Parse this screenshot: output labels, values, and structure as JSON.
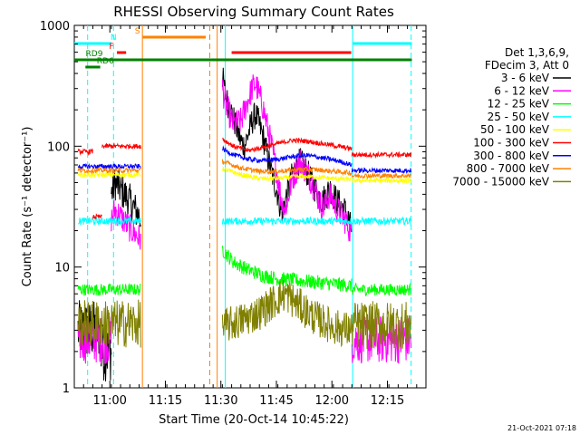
{
  "chart_data": {
    "type": "line",
    "title": "RHESSI Observing Summary Count Rates",
    "xlabel": "Start Time (20-Oct-14 10:45:22)",
    "ylabel": "Count Rate (s⁻¹ detector⁻¹)",
    "yscale": "log",
    "ylim": [
      1,
      1000
    ],
    "xlim_minutes": [
      5,
      100
    ],
    "x_ticks": [
      {
        "m": 14.6,
        "label": "11:00"
      },
      {
        "m": 29.6,
        "label": "11:15"
      },
      {
        "m": 44.6,
        "label": "11:30"
      },
      {
        "m": 59.6,
        "label": "11:45"
      },
      {
        "m": 74.6,
        "label": "12:00"
      },
      {
        "m": 89.6,
        "label": "12:15"
      }
    ],
    "y_ticks": [
      {
        "v": 1,
        "label": "1"
      },
      {
        "v": 10,
        "label": "10"
      },
      {
        "v": 100,
        "label": "100"
      },
      {
        "v": 1000,
        "label": "1000"
      }
    ],
    "legend_header": [
      "Det 1,3,6,9,",
      "FDecim 3, Att 0"
    ],
    "legend_position": "right",
    "series": [
      {
        "name": "3 - 6 keV",
        "color": "#000000",
        "segments": [
          {
            "from": 6,
            "to": 12,
            "level": 3.0,
            "noise": 0.25
          },
          {
            "from": 12,
            "to": 15,
            "level": 2.0,
            "noise": 0.25
          },
          {
            "from": 15,
            "to": 23,
            "points": [
              [
                15,
                40
              ],
              [
                16,
                50
              ],
              [
                18,
                42
              ],
              [
                20,
                35
              ],
              [
                22,
                28
              ],
              [
                23,
                25
              ]
            ],
            "noise": 0.15
          },
          {
            "from": 45,
            "to": 80,
            "points": [
              [
                45,
                380
              ],
              [
                46,
                250
              ],
              [
                48,
                170
              ],
              [
                50,
                110
              ],
              [
                51,
                100
              ],
              [
                53,
                160
              ],
              [
                54,
                185
              ],
              [
                56,
                120
              ],
              [
                58,
                65
              ],
              [
                60,
                40
              ],
              [
                61,
                28
              ],
              [
                63,
                45
              ],
              [
                64,
                60
              ],
              [
                66,
                75
              ],
              [
                68,
                60
              ],
              [
                70,
                45
              ],
              [
                72,
                35
              ],
              [
                74,
                45
              ],
              [
                76,
                35
              ],
              [
                78,
                30
              ],
              [
                79,
                25
              ],
              [
                80,
                20
              ]
            ],
            "noise": 0.12
          }
        ]
      },
      {
        "name": "6 - 12 keV",
        "color": "#ff00ff",
        "segments": [
          {
            "from": 6,
            "to": 15,
            "level": 2.5,
            "noise": 0.2
          },
          {
            "from": 15,
            "to": 23,
            "points": [
              [
                15,
                25
              ],
              [
                16,
                30
              ],
              [
                18,
                25
              ],
              [
                20,
                21
              ],
              [
                22,
                18
              ],
              [
                23,
                17
              ]
            ],
            "noise": 0.12
          },
          {
            "from": 45,
            "to": 80,
            "points": [
              [
                45,
                300
              ],
              [
                46,
                220
              ],
              [
                48,
                150
              ],
              [
                50,
                160
              ],
              [
                51,
                200
              ],
              [
                53,
                300
              ],
              [
                54,
                330
              ],
              [
                56,
                210
              ],
              [
                58,
                110
              ],
              [
                60,
                55
              ],
              [
                61,
                35
              ],
              [
                62,
                30
              ],
              [
                64,
                55
              ],
              [
                66,
                75
              ],
              [
                68,
                60
              ],
              [
                70,
                45
              ],
              [
                72,
                30
              ],
              [
                74,
                40
              ],
              [
                76,
                30
              ],
              [
                78,
                25
              ],
              [
                79,
                22
              ],
              [
                80,
                18
              ]
            ],
            "noise": 0.12
          },
          {
            "from": 80,
            "to": 96,
            "level": 2.5,
            "noise": 0.2
          }
        ]
      },
      {
        "name": "12 - 25 keV",
        "color": "#00ff00",
        "segments": [
          {
            "from": 6,
            "to": 23,
            "level": 6.5,
            "noise": 0.05
          },
          {
            "from": 45,
            "to": 80,
            "points": [
              [
                45,
                14
              ],
              [
                48,
                11
              ],
              [
                52,
                9.5
              ],
              [
                56,
                8.5
              ],
              [
                60,
                8
              ],
              [
                64,
                7.8
              ],
              [
                68,
                7.6
              ],
              [
                72,
                7.4
              ],
              [
                76,
                7.2
              ],
              [
                80,
                7
              ]
            ],
            "noise": 0.06
          },
          {
            "from": 80,
            "to": 96,
            "level": 6.5,
            "noise": 0.05
          }
        ]
      },
      {
        "name": "25 - 50 keV",
        "color": "#00ffff",
        "segments": [
          {
            "from": 6,
            "to": 23,
            "level": 24,
            "noise": 0.03
          },
          {
            "from": 45,
            "to": 96,
            "level": 24,
            "noise": 0.03
          }
        ]
      },
      {
        "name": "50 - 100 keV",
        "color": "#ffff00",
        "segments": [
          {
            "from": 6,
            "to": 23,
            "level": 58,
            "noise": 0.02
          },
          {
            "from": 45,
            "to": 80,
            "points": [
              [
                45,
                65
              ],
              [
                50,
                58
              ],
              [
                55,
                54
              ],
              [
                60,
                54
              ],
              [
                65,
                56
              ],
              [
                70,
                56
              ],
              [
                75,
                54
              ],
              [
                80,
                53
              ]
            ],
            "noise": 0.02
          },
          {
            "from": 80,
            "to": 96,
            "level": 52,
            "noise": 0.02
          }
        ]
      },
      {
        "name": "100 - 300 keV",
        "color": "#ff0000",
        "segments": [
          {
            "from": 6,
            "to": 10,
            "level": 90,
            "noise": 0.02
          },
          {
            "from": 10,
            "to": 12.5,
            "level": 26,
            "noise": 0.02
          },
          {
            "from": 12.5,
            "to": 23,
            "level": 100,
            "noise": 0.02
          },
          {
            "from": 45,
            "to": 80,
            "points": [
              [
                45,
                115
              ],
              [
                48,
                100
              ],
              [
                52,
                92
              ],
              [
                56,
                98
              ],
              [
                60,
                105
              ],
              [
                64,
                112
              ],
              [
                68,
                110
              ],
              [
                72,
                105
              ],
              [
                76,
                100
              ],
              [
                80,
                95
              ]
            ],
            "noise": 0.02
          },
          {
            "from": 80,
            "to": 96,
            "level": 85,
            "noise": 0.02
          }
        ]
      },
      {
        "name": "300 - 800 keV",
        "color": "#0000ff",
        "segments": [
          {
            "from": 6,
            "to": 23,
            "level": 68,
            "noise": 0.02
          },
          {
            "from": 45,
            "to": 80,
            "points": [
              [
                45,
                95
              ],
              [
                48,
                85
              ],
              [
                52,
                78
              ],
              [
                56,
                76
              ],
              [
                60,
                78
              ],
              [
                64,
                82
              ],
              [
                68,
                84
              ],
              [
                72,
                80
              ],
              [
                76,
                76
              ],
              [
                80,
                70
              ]
            ],
            "noise": 0.02
          },
          {
            "from": 80,
            "to": 96,
            "level": 63,
            "noise": 0.02
          }
        ]
      },
      {
        "name": "800 - 7000 keV",
        "color": "#ff8000",
        "segments": [
          {
            "from": 6,
            "to": 23,
            "level": 63,
            "noise": 0.02
          },
          {
            "from": 45,
            "to": 80,
            "points": [
              [
                45,
                75
              ],
              [
                50,
                66
              ],
              [
                55,
                62
              ],
              [
                60,
                62
              ],
              [
                65,
                64
              ],
              [
                70,
                64
              ],
              [
                75,
                62
              ],
              [
                80,
                60
              ]
            ],
            "noise": 0.02
          },
          {
            "from": 80,
            "to": 96,
            "level": 57,
            "noise": 0.02
          }
        ]
      },
      {
        "name": "7000 - 15000 keV",
        "color": "#808000",
        "segments": [
          {
            "from": 6,
            "to": 23,
            "level": 3.4,
            "noise": 0.2
          },
          {
            "from": 45,
            "to": 80,
            "points": [
              [
                45,
                3.2
              ],
              [
                50,
                3.6
              ],
              [
                55,
                4.2
              ],
              [
                60,
                5.5
              ],
              [
                62,
                6
              ],
              [
                65,
                5
              ],
              [
                70,
                3.8
              ],
              [
                75,
                3.2
              ],
              [
                80,
                3
              ]
            ],
            "noise": 0.15
          },
          {
            "from": 80,
            "to": 96,
            "level": 3.3,
            "noise": 0.2
          }
        ]
      }
    ],
    "vlines": [
      {
        "m": 8.6,
        "color": "#00ffff",
        "dashed": true
      },
      {
        "m": 15.6,
        "color": "#00ffff",
        "dashed": true
      },
      {
        "m": 23.4,
        "color": "#ff8000",
        "dashed": false
      },
      {
        "m": 41.6,
        "color": "#ff8000",
        "dashed": true
      },
      {
        "m": 43.6,
        "color": "#ff8000",
        "dashed": false
      },
      {
        "m": 45.8,
        "color": "#00ffff",
        "dashed": false
      },
      {
        "m": 80.2,
        "color": "#00ffff",
        "dashed": false
      },
      {
        "m": 96.0,
        "color": "#00ffff",
        "dashed": true
      }
    ],
    "flag_bars": [
      {
        "label": "",
        "color": "#00ffff",
        "from": 5.0,
        "to": 15.0,
        "y": 48
      },
      {
        "label": "",
        "color": "#00ffff",
        "from": 80.2,
        "to": 96.2,
        "y": 48
      },
      {
        "label": "N",
        "color": "#00ffff",
        "from": 15.6,
        "to": 15.6,
        "y": 48
      },
      {
        "label": "S",
        "color": "#ff8000",
        "from": 23.5,
        "to": 40.5,
        "y": 41
      },
      {
        "label": "F",
        "color": "#ff0000",
        "from": 16.5,
        "to": 19.0,
        "y": 58
      },
      {
        "label": "",
        "color": "#ff0000",
        "from": 47.5,
        "to": 79.8,
        "y": 58
      },
      {
        "label": "RD9",
        "color": "#008000",
        "from": 5.0,
        "to": 96.2,
        "y": 66
      },
      {
        "label": "RD6",
        "color": "#008000",
        "from": 8.0,
        "to": 12.0,
        "y": 74
      }
    ],
    "footer_timestamp": "21-Oct-2021 07:18"
  }
}
